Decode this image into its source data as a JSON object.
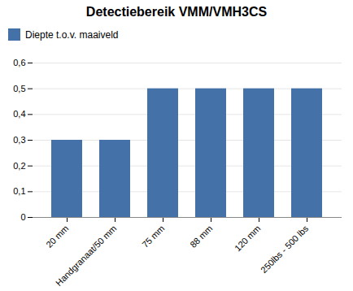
{
  "chart_data": {
    "type": "bar",
    "title": "Detectiebereik VMM/VMH3CS",
    "categories": [
      "20 mm",
      "Handgranaat/50 mm",
      "75 mm",
      "88 mm",
      "120 mm",
      "250lbs - 500 lbs"
    ],
    "series": [
      {
        "name": "Diepte t.o.v. maaiveld",
        "color": "#4472A8",
        "values": [
          0.3,
          0.3,
          0.5,
          0.5,
          0.5,
          0.5
        ]
      }
    ],
    "ylim": [
      0,
      0.6
    ],
    "yticks": [
      0,
      {
        "value": 0.1,
        "label": "0,1"
      },
      {
        "value": 0.2,
        "label": "0,2"
      },
      {
        "value": 0.3,
        "label": "0,3"
      },
      {
        "value": 0.4,
        "label": "0,4"
      },
      {
        "value": 0.5,
        "label": "0,5"
      },
      {
        "value": 0.6,
        "label": "0,6"
      }
    ],
    "grid": true,
    "legend": "upper left"
  }
}
